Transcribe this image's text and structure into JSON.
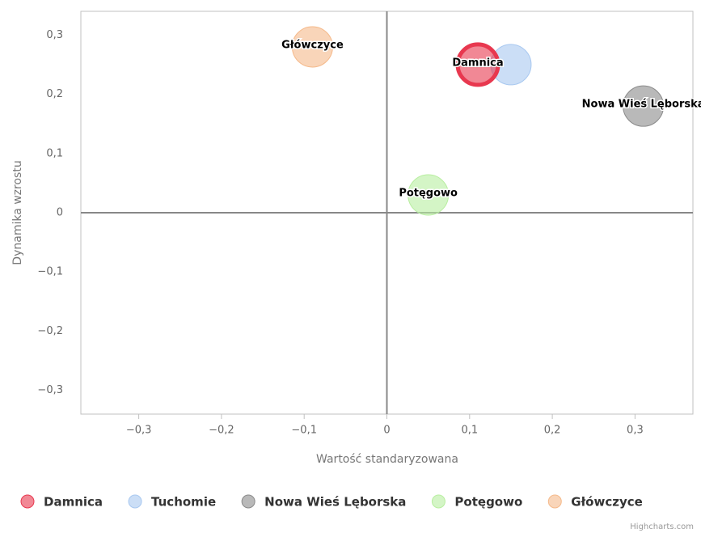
{
  "chart_data": {
    "type": "scatter",
    "x_label": "Wartość standaryzowana",
    "y_label": "Dynamika wzrostu",
    "credits": "Highcharts.com",
    "xlim": [
      -0.37,
      0.37
    ],
    "xticks": [
      {
        "value": -0.3,
        "label": "−0,3"
      },
      {
        "value": -0.2,
        "label": "−0,2"
      },
      {
        "value": -0.1,
        "label": "−0,1"
      },
      0,
      {
        "value": 0.1,
        "label": "0,1"
      },
      {
        "value": 0.2,
        "label": "0,2"
      },
      {
        "value": 0.3,
        "label": "0,3"
      }
    ],
    "ylim": [
      -0.34,
      0.34
    ],
    "yticks": [
      {
        "value": -0.3,
        "label": "−0,3"
      },
      {
        "value": -0.2,
        "label": "−0,2"
      },
      {
        "value": -0.1,
        "label": "−0,1"
      },
      0,
      {
        "value": 0.1,
        "label": "0,1"
      },
      {
        "value": 0.2,
        "label": "0,2"
      },
      {
        "value": 0.3,
        "label": "0,3"
      }
    ],
    "grid": false,
    "legend": "bottom",
    "series": [
      {
        "name": "Damnica",
        "color": "#e8384f",
        "x": [
          0.11
        ],
        "y": [
          0.25
        ],
        "data_label": true
      },
      {
        "name": "Tuchomie",
        "color": "#a8c8f0",
        "x": [
          0.15
        ],
        "y": [
          0.25
        ],
        "data_label": false
      },
      {
        "name": "Nowa Wieś Lęborska",
        "color": "#8a8a8a",
        "x": [
          0.31
        ],
        "y": [
          0.18
        ],
        "data_label": true
      },
      {
        "name": "Potęgowo",
        "color": "#b8eea0",
        "x": [
          0.05
        ],
        "y": [
          0.03
        ],
        "data_label": true
      },
      {
        "name": "Główczyce",
        "color": "#f5b98a",
        "x": [
          -0.09
        ],
        "y": [
          0.28
        ],
        "data_label": true
      }
    ]
  }
}
